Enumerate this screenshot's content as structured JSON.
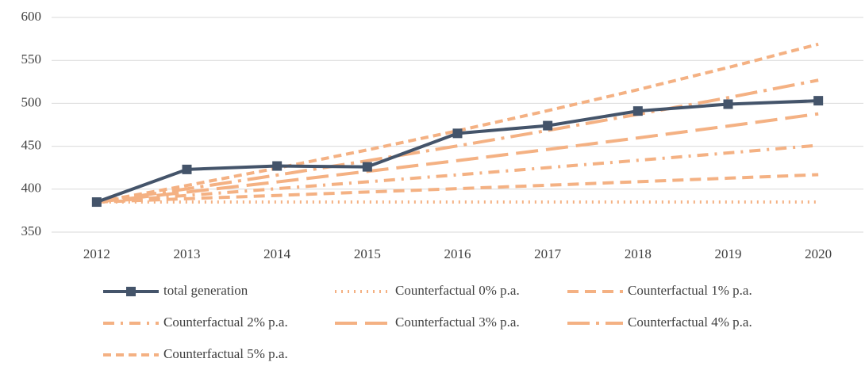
{
  "chart_data": {
    "type": "line",
    "categories": [
      "2012",
      "2013",
      "2014",
      "2015",
      "2016",
      "2017",
      "2018",
      "2019",
      "2020"
    ],
    "series": [
      {
        "name": "total generation",
        "color": "#44546a",
        "dash": "none",
        "marker": "square",
        "values": [
          385,
          423,
          427,
          426,
          465,
          474,
          491,
          499,
          503
        ]
      },
      {
        "name": "Counterfactual 0% p.a.",
        "color": "#f4b183",
        "dash": "2,6",
        "values": [
          385,
          385,
          385,
          385,
          385,
          385,
          385,
          385,
          385
        ]
      },
      {
        "name": "Counterfactual 1% p.a.",
        "color": "#f4b183",
        "dash": "14,8",
        "values": [
          385,
          388.9,
          392.7,
          396.7,
          400.6,
          404.6,
          408.7,
          412.8,
          416.9
        ]
      },
      {
        "name": "Counterfactual 2% p.a.",
        "color": "#f4b183",
        "dash": "14,8,3,8",
        "values": [
          385,
          392.7,
          400.6,
          408.6,
          416.7,
          425.1,
          433.6,
          442.2,
          451.1
        ]
      },
      {
        "name": "Counterfactual 3% p.a.",
        "color": "#f4b183",
        "dash": "28,10",
        "values": [
          385,
          396.6,
          408.4,
          420.7,
          433.3,
          446.3,
          459.7,
          473.5,
          487.7
        ]
      },
      {
        "name": "Counterfactual 4% p.a.",
        "color": "#f4b183",
        "dash": "28,8,4,8",
        "values": [
          385,
          400.4,
          416.4,
          433.1,
          450.4,
          468.4,
          487.2,
          506.6,
          526.9
        ]
      },
      {
        "name": "Counterfactual 5% p.a.",
        "color": "#f4b183",
        "dash": "10,6",
        "values": [
          385,
          404.3,
          424.5,
          445.7,
          468.0,
          491.4,
          515.9,
          541.7,
          568.8
        ]
      }
    ],
    "ylim": [
      350,
      600
    ],
    "yticks": [
      350,
      400,
      450,
      500,
      550,
      600
    ],
    "grid": true
  }
}
